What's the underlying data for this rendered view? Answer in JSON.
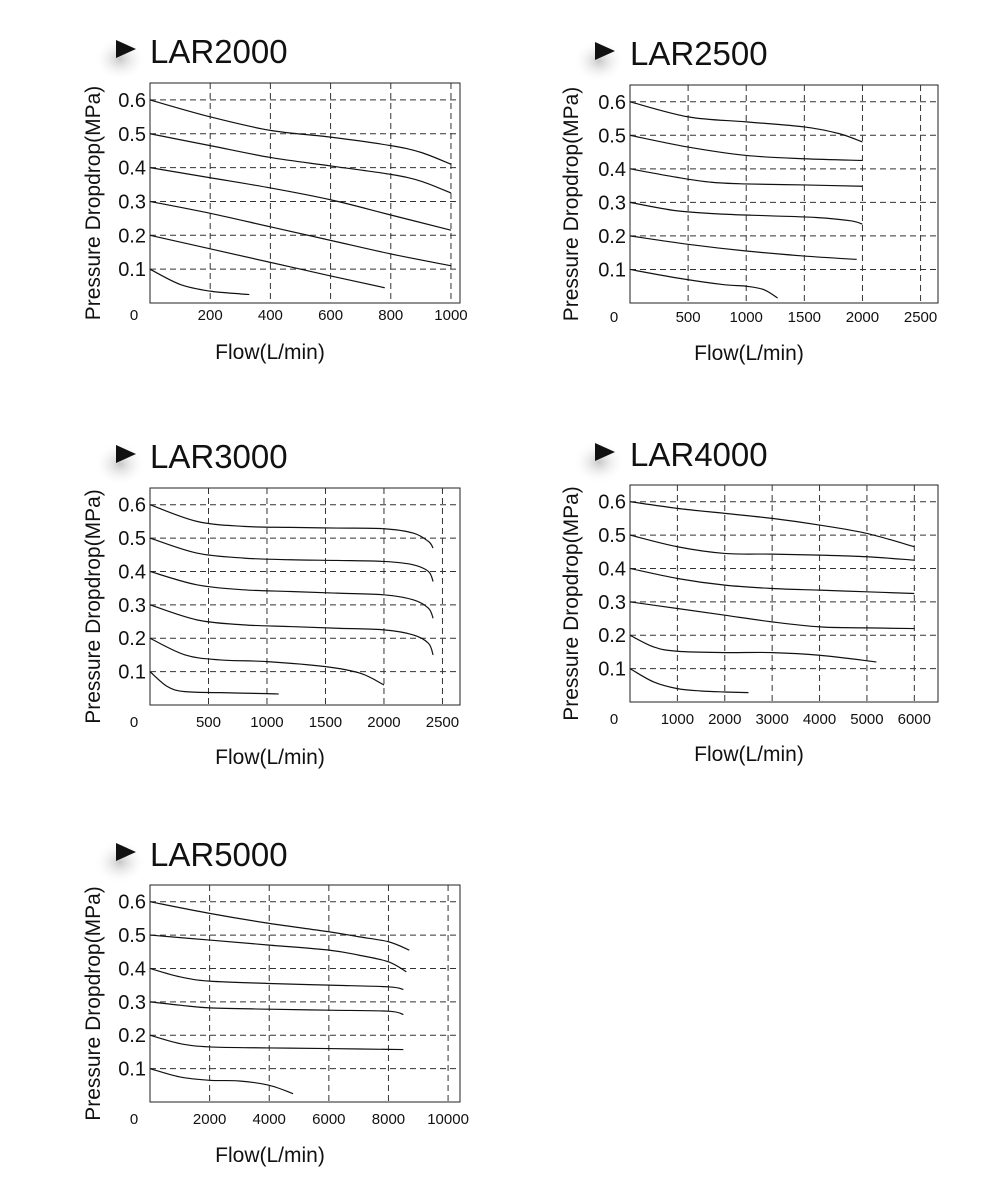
{
  "chart_data": [
    {
      "type": "line",
      "title": "LAR2000",
      "xlabel": "Flow(L/min)",
      "ylabel": "Pressure Dropdrop(MPa)",
      "xlim": [
        0,
        1030
      ],
      "ylim": [
        0,
        0.65
      ],
      "xticks": [
        0,
        200,
        400,
        600,
        800,
        1000
      ],
      "xtick_labels": [
        "0",
        "200",
        "400",
        "600",
        "800",
        "1000"
      ],
      "yticks": [
        0.1,
        0.2,
        0.3,
        0.4,
        0.5,
        0.6
      ],
      "ytick_labels": [
        "0.1",
        "0.2",
        "0.3",
        "0.4",
        "0.5",
        "0.6"
      ],
      "grid": true,
      "series": [
        {
          "x": [
            0,
            100,
            200,
            300,
            330
          ],
          "y": [
            0.1,
            0.055,
            0.035,
            0.027,
            0.025
          ]
        },
        {
          "x": [
            0,
            200,
            400,
            600,
            780
          ],
          "y": [
            0.2,
            0.16,
            0.12,
            0.08,
            0.045
          ]
        },
        {
          "x": [
            0,
            200,
            400,
            600,
            800,
            1000
          ],
          "y": [
            0.3,
            0.265,
            0.225,
            0.185,
            0.145,
            0.11
          ]
        },
        {
          "x": [
            0,
            200,
            400,
            600,
            800,
            1000
          ],
          "y": [
            0.4,
            0.37,
            0.34,
            0.305,
            0.26,
            0.215
          ]
        },
        {
          "x": [
            0,
            200,
            400,
            600,
            800,
            900,
            1000
          ],
          "y": [
            0.5,
            0.465,
            0.43,
            0.405,
            0.38,
            0.36,
            0.325
          ]
        },
        {
          "x": [
            0,
            200,
            400,
            600,
            800,
            900,
            1000
          ],
          "y": [
            0.6,
            0.55,
            0.51,
            0.49,
            0.465,
            0.445,
            0.41
          ]
        }
      ]
    },
    {
      "type": "line",
      "title": "LAR2500",
      "xlabel": "Flow(L/min)",
      "ylabel": "Pressure Dropdrop(MPa)",
      "xlim": [
        0,
        2650
      ],
      "ylim": [
        0,
        0.65
      ],
      "xticks": [
        0,
        500,
        1000,
        1500,
        2000,
        2500
      ],
      "xtick_labels": [
        "0",
        "500",
        "1000",
        "1500",
        "2000",
        "2500"
      ],
      "yticks": [
        0.1,
        0.2,
        0.3,
        0.4,
        0.5,
        0.6
      ],
      "ytick_labels": [
        "0.1",
        "0.2",
        "0.3",
        "0.4",
        "0.5",
        "0.6"
      ],
      "grid": true,
      "series": [
        {
          "x": [
            0,
            400,
            800,
            1000,
            1150,
            1270
          ],
          "y": [
            0.1,
            0.075,
            0.055,
            0.05,
            0.04,
            0.015
          ]
        },
        {
          "x": [
            0,
            500,
            1000,
            1500,
            1950
          ],
          "y": [
            0.2,
            0.175,
            0.155,
            0.14,
            0.13
          ]
        },
        {
          "x": [
            0,
            400,
            800,
            1200,
            1600,
            1900,
            2000
          ],
          "y": [
            0.3,
            0.275,
            0.265,
            0.26,
            0.255,
            0.245,
            0.235
          ]
        },
        {
          "x": [
            0,
            400,
            700,
            1000,
            1500,
            2000
          ],
          "y": [
            0.4,
            0.375,
            0.36,
            0.355,
            0.352,
            0.348
          ]
        },
        {
          "x": [
            0,
            500,
            1000,
            1500,
            2000
          ],
          "y": [
            0.5,
            0.465,
            0.44,
            0.43,
            0.425
          ]
        },
        {
          "x": [
            0,
            500,
            1000,
            1500,
            1800,
            2000
          ],
          "y": [
            0.6,
            0.555,
            0.54,
            0.525,
            0.505,
            0.48
          ]
        }
      ]
    },
    {
      "type": "line",
      "title": "LAR3000",
      "xlabel": "Flow(L/min)",
      "ylabel": "Pressure Dropdrop(MPa)",
      "xlim": [
        0,
        2650
      ],
      "ylim": [
        0,
        0.65
      ],
      "xticks": [
        0,
        500,
        1000,
        1500,
        2000,
        2500
      ],
      "xtick_labels": [
        "0",
        "500",
        "1000",
        "1500",
        "2000",
        "2500"
      ],
      "yticks": [
        0.1,
        0.2,
        0.3,
        0.4,
        0.5,
        0.6
      ],
      "ytick_labels": [
        "0.1",
        "0.2",
        "0.3",
        "0.4",
        "0.5",
        "0.6"
      ],
      "grid": true,
      "series": [
        {
          "x": [
            0,
            150,
            300,
            600,
            1000,
            1100
          ],
          "y": [
            0.1,
            0.055,
            0.04,
            0.037,
            0.034,
            0.033
          ]
        },
        {
          "x": [
            0,
            300,
            600,
            1000,
            1500,
            1800,
            2000
          ],
          "y": [
            0.2,
            0.15,
            0.135,
            0.13,
            0.115,
            0.095,
            0.06
          ]
        },
        {
          "x": [
            0,
            400,
            800,
            1200,
            1600,
            2000,
            2250,
            2380,
            2420
          ],
          "y": [
            0.3,
            0.255,
            0.24,
            0.235,
            0.23,
            0.225,
            0.21,
            0.185,
            0.15
          ]
        },
        {
          "x": [
            0,
            400,
            800,
            1200,
            1600,
            2000,
            2250,
            2380,
            2420
          ],
          "y": [
            0.4,
            0.36,
            0.345,
            0.34,
            0.335,
            0.33,
            0.315,
            0.29,
            0.26
          ]
        },
        {
          "x": [
            0,
            400,
            800,
            1200,
            1600,
            2000,
            2250,
            2380,
            2420
          ],
          "y": [
            0.5,
            0.455,
            0.44,
            0.435,
            0.433,
            0.43,
            0.42,
            0.4,
            0.37
          ]
        },
        {
          "x": [
            0,
            400,
            800,
            1200,
            1600,
            2000,
            2250,
            2380,
            2420
          ],
          "y": [
            0.6,
            0.55,
            0.535,
            0.532,
            0.53,
            0.528,
            0.515,
            0.49,
            0.47
          ]
        }
      ]
    },
    {
      "type": "line",
      "title": "LAR4000",
      "xlabel": "Flow(L/min)",
      "ylabel": "Pressure Dropdrop(MPa)",
      "xlim": [
        0,
        6500
      ],
      "ylim": [
        0,
        0.65
      ],
      "xticks": [
        0,
        1000,
        2000,
        3000,
        4000,
        5000,
        6000
      ],
      "xtick_labels": [
        "0",
        "1000",
        "2000",
        "3000",
        "4000",
        "5000",
        "6000"
      ],
      "yticks": [
        0.1,
        0.2,
        0.3,
        0.4,
        0.5,
        0.6
      ],
      "ytick_labels": [
        "0.1",
        "0.2",
        "0.3",
        "0.4",
        "0.5",
        "0.6"
      ],
      "grid": true,
      "series": [
        {
          "x": [
            0,
            500,
            1000,
            1500,
            2000,
            2500
          ],
          "y": [
            0.1,
            0.06,
            0.04,
            0.033,
            0.03,
            0.028
          ]
        },
        {
          "x": [
            0,
            500,
            1000,
            2000,
            3000,
            4000,
            5200
          ],
          "y": [
            0.2,
            0.165,
            0.152,
            0.148,
            0.148,
            0.14,
            0.12
          ]
        },
        {
          "x": [
            0,
            1000,
            2000,
            3000,
            4000,
            5000,
            6000
          ],
          "y": [
            0.3,
            0.28,
            0.26,
            0.24,
            0.225,
            0.222,
            0.22
          ]
        },
        {
          "x": [
            0,
            1000,
            2000,
            3000,
            4000,
            5000,
            6000
          ],
          "y": [
            0.4,
            0.37,
            0.35,
            0.34,
            0.335,
            0.33,
            0.325
          ]
        },
        {
          "x": [
            0,
            1000,
            2000,
            3000,
            4000,
            5000,
            6000
          ],
          "y": [
            0.5,
            0.465,
            0.445,
            0.443,
            0.44,
            0.435,
            0.425
          ]
        },
        {
          "x": [
            0,
            1000,
            2000,
            3000,
            4000,
            5000,
            6000
          ],
          "y": [
            0.6,
            0.58,
            0.565,
            0.55,
            0.53,
            0.505,
            0.465
          ]
        }
      ]
    },
    {
      "type": "line",
      "title": "LAR5000",
      "xlabel": "Flow(L/min)",
      "ylabel": "Pressure Dropdrop(MPa)",
      "xlim": [
        0,
        10400
      ],
      "ylim": [
        0,
        0.65
      ],
      "xticks": [
        0,
        2000,
        4000,
        6000,
        8000,
        10000
      ],
      "xtick_labels": [
        "0",
        "2000",
        "4000",
        "6000",
        "8000",
        "10000"
      ],
      "yticks": [
        0.1,
        0.2,
        0.3,
        0.4,
        0.5,
        0.6
      ],
      "ytick_labels": [
        "0.1",
        "0.2",
        "0.3",
        "0.4",
        "0.5",
        "0.6"
      ],
      "grid": true,
      "series": [
        {
          "x": [
            0,
            1000,
            2000,
            3000,
            4000,
            4800
          ],
          "y": [
            0.1,
            0.075,
            0.065,
            0.063,
            0.05,
            0.025
          ]
        },
        {
          "x": [
            0,
            1000,
            2000,
            4000,
            6000,
            8500
          ],
          "y": [
            0.2,
            0.175,
            0.165,
            0.162,
            0.16,
            0.157
          ]
        },
        {
          "x": [
            0,
            1000,
            2000,
            4000,
            6000,
            8000,
            8500
          ],
          "y": [
            0.3,
            0.29,
            0.282,
            0.278,
            0.275,
            0.272,
            0.262
          ]
        },
        {
          "x": [
            0,
            1000,
            2000,
            4000,
            6000,
            8000,
            8500
          ],
          "y": [
            0.4,
            0.375,
            0.362,
            0.355,
            0.35,
            0.345,
            0.337
          ]
        },
        {
          "x": [
            0,
            2000,
            4000,
            6000,
            7000,
            8000,
            8600
          ],
          "y": [
            0.5,
            0.485,
            0.47,
            0.455,
            0.44,
            0.42,
            0.39
          ]
        },
        {
          "x": [
            0,
            2000,
            4000,
            6000,
            7000,
            8000,
            8700
          ],
          "y": [
            0.6,
            0.565,
            0.535,
            0.51,
            0.495,
            0.48,
            0.455
          ]
        }
      ]
    }
  ]
}
